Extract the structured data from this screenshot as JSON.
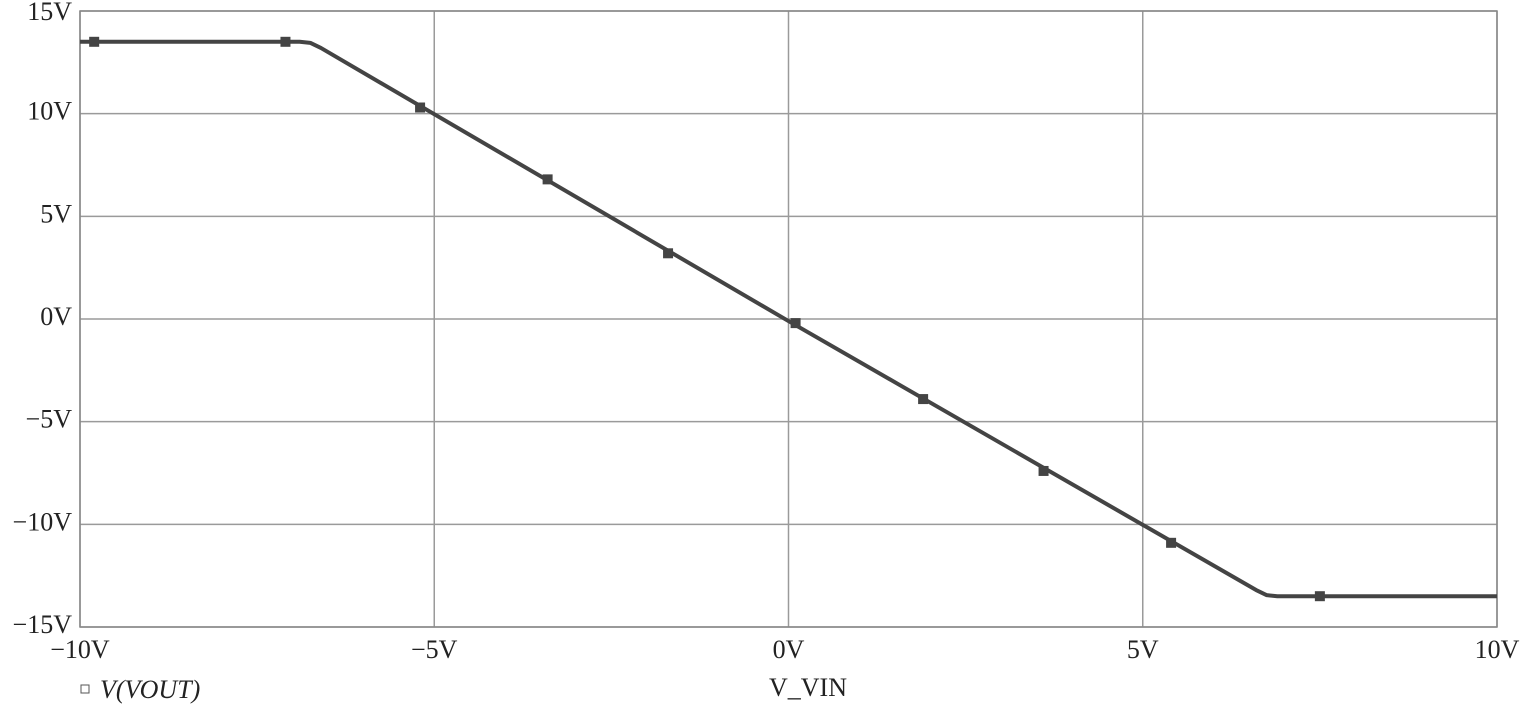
{
  "chart_data": {
    "type": "line",
    "x_label": "V_VIN",
    "series": [
      {
        "name": "V(VOUT)",
        "color": "#444444",
        "x": [
          -10,
          -6.9,
          -6.75,
          -6.6,
          0,
          6.6,
          6.75,
          6.9,
          10
        ],
        "values": [
          13.5,
          13.5,
          13.45,
          13.2,
          -0.1,
          -13.2,
          -13.45,
          -13.5,
          -13.5
        ],
        "marker_x": [
          -9.8,
          -7.1,
          -5.2,
          -3.4,
          -1.7,
          0.1,
          1.9,
          3.6,
          5.4,
          7.5
        ],
        "marker_values": [
          13.5,
          13.5,
          10.3,
          6.8,
          3.2,
          -0.2,
          -3.9,
          -7.4,
          -10.9,
          -13.5
        ]
      }
    ],
    "xlim": [
      -10,
      10
    ],
    "xticks": [
      {
        "value": -10,
        "label": "−10V"
      },
      {
        "value": -5,
        "label": "−5V"
      },
      {
        "value": 0,
        "label": "0V"
      },
      {
        "value": 5,
        "label": "5V"
      },
      {
        "value": 10,
        "label": "10V"
      }
    ],
    "ylim": [
      -15,
      15
    ],
    "yticks": [
      {
        "value": -15,
        "label": "−15V"
      },
      {
        "value": -10,
        "label": "−10V"
      },
      {
        "value": -5,
        "label": "−5V"
      },
      {
        "value": 0,
        "label": "0V"
      },
      {
        "value": 5,
        "label": "5V"
      },
      {
        "value": 10,
        "label": "10V"
      },
      {
        "value": 15,
        "label": "15V"
      }
    ],
    "grid": true
  }
}
